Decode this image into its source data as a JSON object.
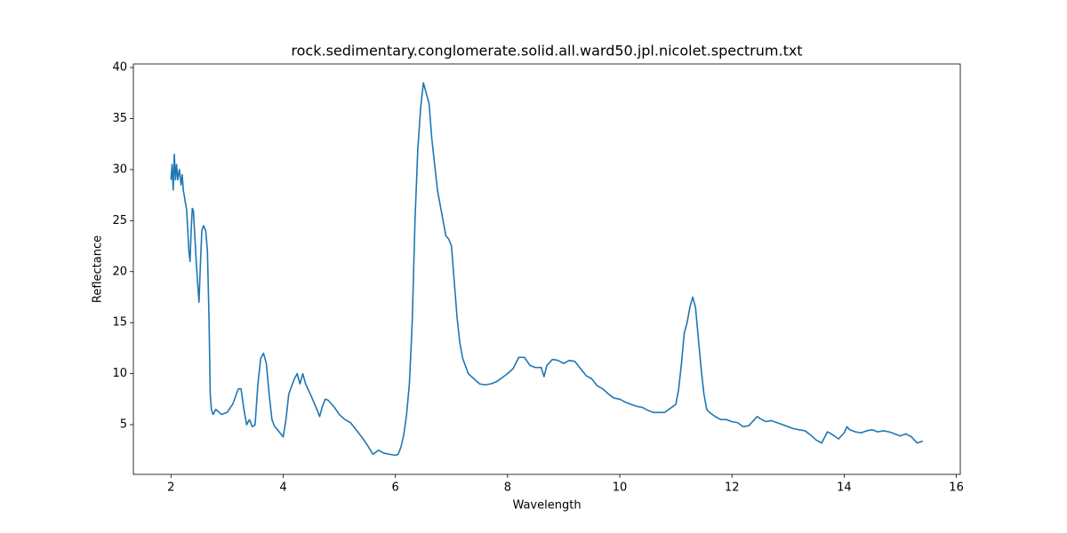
{
  "chart_data": {
    "type": "line",
    "title": "rock.sedimentary.conglomerate.solid.all.ward50.jpl.nicolet.spectrum.txt",
    "x_label": "Wavelength",
    "y_label": "Reflectance",
    "xlim": [
      1.33,
      16.07
    ],
    "ylim": [
      0.13,
      40.35
    ],
    "xticks": [
      2,
      4,
      6,
      8,
      10,
      12,
      14,
      16
    ],
    "yticks": [
      5,
      10,
      15,
      20,
      25,
      30,
      35,
      40
    ],
    "series": [
      {
        "color": "#1f77b4",
        "x": [
          2.0,
          2.02,
          2.04,
          2.06,
          2.08,
          2.1,
          2.12,
          2.15,
          2.18,
          2.2,
          2.22,
          2.25,
          2.28,
          2.3,
          2.32,
          2.34,
          2.36,
          2.38,
          2.4,
          2.42,
          2.45,
          2.48,
          2.5,
          2.52,
          2.55,
          2.58,
          2.62,
          2.65,
          2.68,
          2.7,
          2.72,
          2.75,
          2.8,
          2.9,
          3.0,
          3.1,
          3.2,
          3.25,
          3.3,
          3.35,
          3.4,
          3.45,
          3.5,
          3.55,
          3.6,
          3.65,
          3.7,
          3.75,
          3.8,
          3.85,
          3.9,
          4.0,
          4.05,
          4.1,
          4.2,
          4.25,
          4.3,
          4.35,
          4.4,
          4.5,
          4.6,
          4.65,
          4.7,
          4.75,
          4.8,
          4.9,
          5.0,
          5.1,
          5.2,
          5.3,
          5.4,
          5.5,
          5.6,
          5.7,
          5.8,
          5.9,
          6.0,
          6.05,
          6.1,
          6.15,
          6.2,
          6.25,
          6.3,
          6.35,
          6.4,
          6.45,
          6.5,
          6.55,
          6.6,
          6.65,
          6.7,
          6.75,
          6.8,
          6.85,
          6.9,
          6.95,
          7.0,
          7.05,
          7.1,
          7.15,
          7.2,
          7.3,
          7.4,
          7.5,
          7.6,
          7.7,
          7.8,
          7.9,
          8.0,
          8.1,
          8.2,
          8.3,
          8.4,
          8.5,
          8.6,
          8.65,
          8.7,
          8.8,
          8.9,
          9.0,
          9.1,
          9.2,
          9.3,
          9.4,
          9.5,
          9.6,
          9.7,
          9.8,
          9.9,
          10.0,
          10.1,
          10.2,
          10.3,
          10.4,
          10.5,
          10.6,
          10.7,
          10.8,
          10.9,
          11.0,
          11.05,
          11.1,
          11.15,
          11.2,
          11.25,
          11.3,
          11.35,
          11.4,
          11.45,
          11.5,
          11.55,
          11.6,
          11.7,
          11.8,
          11.9,
          12.0,
          12.1,
          12.2,
          12.3,
          12.4,
          12.45,
          12.5,
          12.6,
          12.7,
          12.8,
          12.9,
          13.0,
          13.1,
          13.2,
          13.3,
          13.4,
          13.5,
          13.6,
          13.7,
          13.8,
          13.9,
          14.0,
          14.05,
          14.1,
          14.2,
          14.3,
          14.4,
          14.5,
          14.6,
          14.7,
          14.8,
          14.9,
          15.0,
          15.1,
          15.2,
          15.3,
          15.4
        ],
        "values": [
          29,
          30.5,
          28,
          31.5,
          29,
          30.5,
          29,
          30,
          28.5,
          29.5,
          28,
          27,
          26,
          24,
          22,
          21,
          24,
          26.2,
          26,
          24,
          21,
          18.5,
          17,
          20,
          24,
          24.5,
          24,
          22,
          15,
          8,
          6.5,
          6,
          6.5,
          6,
          6.2,
          7,
          8.5,
          8.5,
          6.5,
          5,
          5.5,
          4.8,
          5,
          9,
          11.5,
          12,
          11,
          8,
          5.5,
          4.8,
          4.5,
          3.8,
          5.5,
          8,
          9.5,
          10,
          9,
          10,
          9,
          7.8,
          6.5,
          5.8,
          6.8,
          7.5,
          7.4,
          6.8,
          6.0,
          5.5,
          5.2,
          4.5,
          3.8,
          3.0,
          2.1,
          2.5,
          2.2,
          2.1,
          2.0,
          2.1,
          2.8,
          4,
          6,
          9,
          15,
          25,
          32,
          36,
          38.5,
          37.5,
          36.5,
          33,
          30.5,
          28,
          26.5,
          25,
          23.5,
          23.2,
          22.5,
          19,
          15.5,
          13,
          11.5,
          10,
          9.5,
          9.0,
          8.9,
          9.0,
          9.2,
          9.6,
          10,
          10.5,
          11.6,
          11.6,
          10.8,
          10.6,
          10.6,
          9.7,
          10.8,
          11.4,
          11.3,
          11.0,
          11.3,
          11.2,
          10.5,
          9.8,
          9.5,
          8.8,
          8.5,
          8.0,
          7.6,
          7.5,
          7.2,
          7.0,
          6.8,
          6.7,
          6.4,
          6.2,
          6.2,
          6.2,
          6.6,
          7.0,
          8.5,
          11,
          14,
          15,
          16.5,
          17.5,
          16.5,
          13.5,
          10.5,
          8,
          6.5,
          6.2,
          5.8,
          5.5,
          5.5,
          5.3,
          5.2,
          4.8,
          4.9,
          5.5,
          5.8,
          5.6,
          5.3,
          5.4,
          5.2,
          5.0,
          4.8,
          4.6,
          4.5,
          4.4,
          4.0,
          3.5,
          3.2,
          4.3,
          4.0,
          3.6,
          4.2,
          4.8,
          4.5,
          4.3,
          4.2,
          4.4,
          4.5,
          4.3,
          4.4,
          4.3,
          4.1,
          3.9,
          4.1,
          3.8,
          3.2,
          3.4
        ]
      }
    ]
  }
}
